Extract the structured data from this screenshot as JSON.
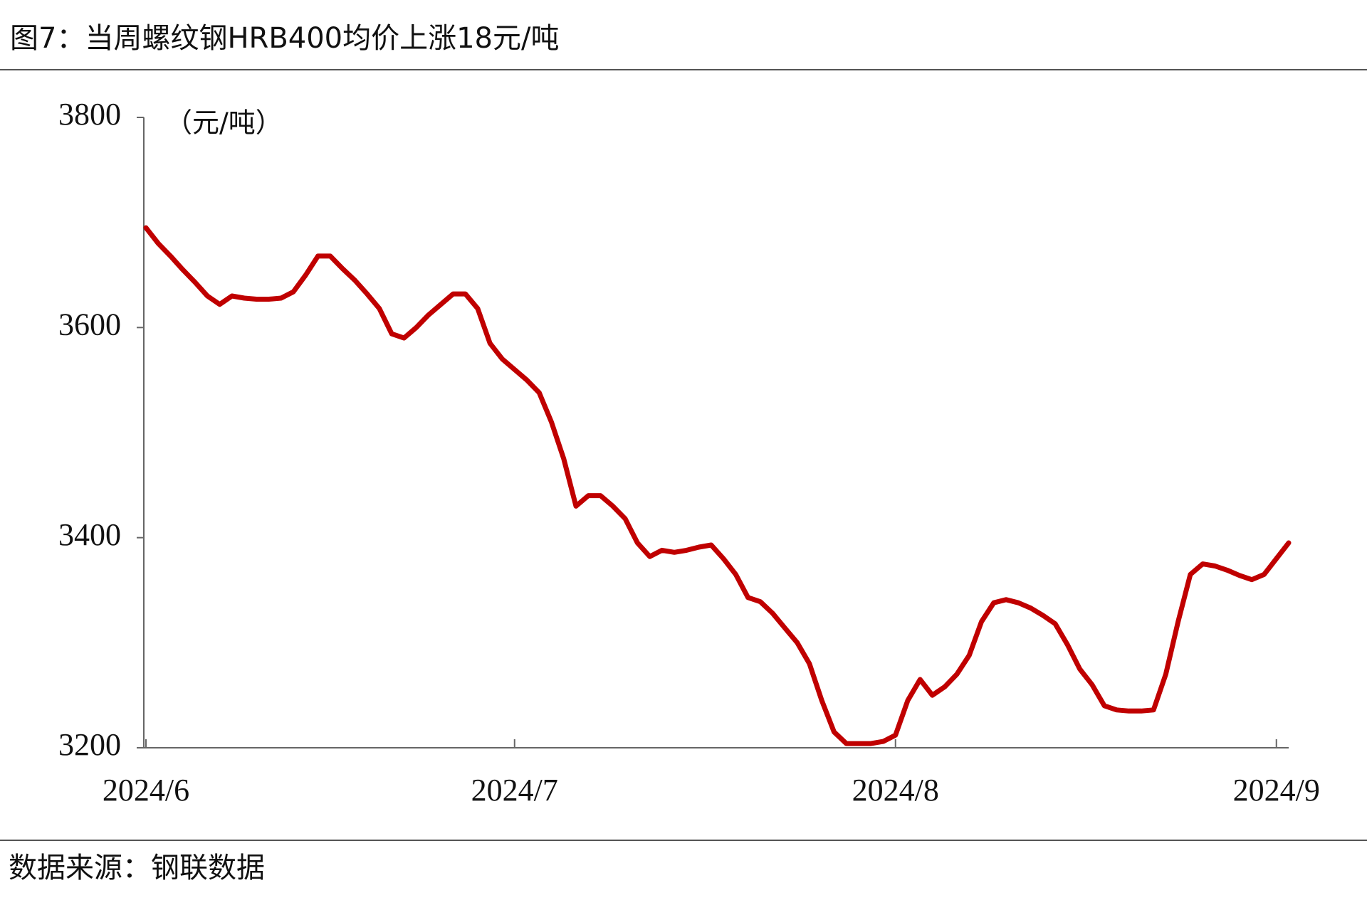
{
  "chart_data": {
    "type": "line",
    "title": "图7：当周螺纹钢HRB400均价上涨18元/吨",
    "y_label": "（元/吨）",
    "source": "数据来源：钢联数据",
    "categories": [
      "2024/6",
      null,
      null,
      null,
      null,
      null,
      null,
      null,
      null,
      null,
      null,
      null,
      null,
      null,
      null,
      null,
      null,
      null,
      null,
      null,
      null,
      null,
      null,
      null,
      null,
      null,
      null,
      null,
      null,
      null,
      "2024/7",
      null,
      null,
      null,
      null,
      null,
      null,
      null,
      null,
      null,
      null,
      null,
      null,
      null,
      null,
      null,
      null,
      null,
      null,
      null,
      null,
      null,
      null,
      null,
      null,
      null,
      null,
      null,
      null,
      null,
      null,
      "2024/8",
      null,
      null,
      null,
      null,
      null,
      null,
      null,
      null,
      null,
      null,
      null,
      null,
      null,
      null,
      null,
      null,
      null,
      null,
      null,
      null,
      null,
      null,
      null,
      null,
      null,
      null,
      null,
      null,
      null,
      null,
      "2024/9",
      null
    ],
    "series": [
      {
        "name": "螺纹钢HRB400均价",
        "color": "#c00000",
        "values": [
          3695,
          3680,
          3668,
          3655,
          3643,
          3630,
          3622,
          3630,
          3628,
          3627,
          3627,
          3628,
          3634,
          3650,
          3668,
          3668,
          3656,
          3645,
          3632,
          3618,
          3594,
          3590,
          3600,
          3612,
          3622,
          3632,
          3632,
          3618,
          3585,
          3570,
          3560,
          3550,
          3538,
          3510,
          3475,
          3430,
          3440,
          3440,
          3430,
          3418,
          3395,
          3382,
          3388,
          3386,
          3388,
          3391,
          3393,
          3380,
          3365,
          3343,
          3339,
          3328,
          3314,
          3300,
          3280,
          3245,
          3215,
          3204,
          3204,
          3204,
          3206,
          3212,
          3245,
          3265,
          3250,
          3258,
          3270,
          3288,
          3320,
          3338,
          3341,
          3338,
          3333,
          3326,
          3318,
          3298,
          3275,
          3260,
          3240,
          3236,
          3235,
          3235,
          3236,
          3270,
          3320,
          3365,
          3375,
          3373,
          3369,
          3364,
          3360,
          3365,
          3380,
          3395
        ]
      }
    ],
    "ylim": [
      3200,
      3800
    ],
    "yticks": [
      3200,
      3400,
      3600,
      3800
    ],
    "grid": false
  }
}
